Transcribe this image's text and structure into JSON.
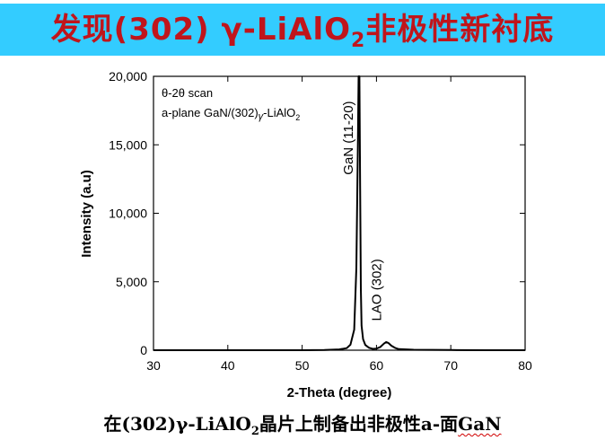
{
  "slide": {
    "title_pre": "发现(302) γ-LiAlO",
    "title_sub": "2",
    "title_post": "非极性新衬底",
    "caption_pre": "在(302)γ-LiAlO",
    "caption_sub": "2",
    "caption_mid": "晶片上制备出非极性a-面",
    "caption_end": "GaN"
  },
  "colors": {
    "title_bar": "#33ccff",
    "title_text": "#c0151b",
    "trace": "#000000"
  },
  "chart_data": {
    "type": "line",
    "xlabel": "2-Theta (degree)",
    "ylabel": "Intensity (a.u)",
    "xlim": [
      30,
      80
    ],
    "ylim": [
      0,
      20000
    ],
    "xticks": [
      30,
      40,
      50,
      60,
      70,
      80
    ],
    "yticks": [
      0,
      5000,
      10000,
      15000,
      20000
    ],
    "ytick_labels": [
      "0",
      "5,000",
      "10,000",
      "15,000",
      "20,000"
    ],
    "grid": false,
    "legend": "none",
    "inset_text_1": "θ-2θ scan",
    "inset_text_2_pre": "a-plane GaN/(302)",
    "inset_text_2_gamma": "γ",
    "inset_text_2_post": "-LiAlO",
    "inset_text_2_sub": "2",
    "annotations": [
      {
        "text": "GaN (11-20)",
        "x": 56.8,
        "y": 15500
      },
      {
        "text": "LAO (302)",
        "x": 60.6,
        "y": 4400
      }
    ],
    "series": [
      {
        "x": [
          30,
          35,
          40,
          45,
          50,
          53,
          55,
          56,
          56.5,
          57.0,
          57.3,
          57.5,
          57.6,
          57.7,
          57.8,
          57.9,
          58.0,
          58.2,
          58.5,
          59.0,
          59.5,
          60.0,
          60.5,
          61.0,
          61.3,
          61.6,
          62.0,
          62.5,
          63.0,
          65,
          70,
          75,
          80
        ],
        "y": [
          0,
          0,
          0,
          0,
          0,
          20,
          60,
          150,
          400,
          1500,
          6000,
          15000,
          20000,
          20000,
          12000,
          4500,
          1800,
          800,
          380,
          180,
          100,
          120,
          220,
          480,
          600,
          530,
          330,
          170,
          80,
          30,
          10,
          0,
          0
        ]
      }
    ]
  }
}
